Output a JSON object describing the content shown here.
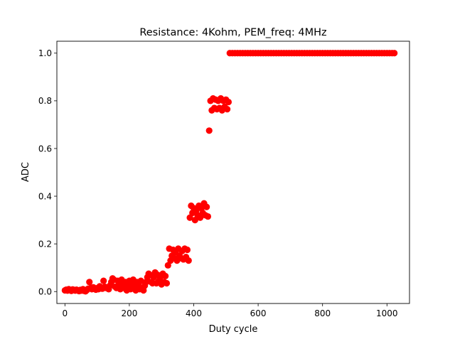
{
  "chart_data": {
    "type": "scatter",
    "title": "Resistance: 4Kohm, PEM_freq: 4MHz",
    "xlabel": "Duty cycle",
    "ylabel": "ADC",
    "xlim": [
      -25,
      1070
    ],
    "ylim": [
      -0.05,
      1.05
    ],
    "xticks": [
      0,
      200,
      400,
      600,
      800,
      1000
    ],
    "xtick_labels": [
      "0",
      "200",
      "400",
      "600",
      "800",
      "1000"
    ],
    "yticks": [
      0.0,
      0.2,
      0.4,
      0.6,
      0.8,
      1.0
    ],
    "ytick_labels": [
      "0.0",
      "0.2",
      "0.4",
      "0.6",
      "0.8",
      "1.0"
    ],
    "grid": false,
    "legend": "none",
    "marker_color": "#ff0000",
    "series": [
      {
        "values": [
          [
            0,
            0.005
          ],
          [
            4,
            0.008
          ],
          [
            8,
            0.004
          ],
          [
            12,
            0.01
          ],
          [
            16,
            0.006
          ],
          [
            20,
            0.003
          ],
          [
            24,
            0.009
          ],
          [
            28,
            0.007
          ],
          [
            32,
            0.004
          ],
          [
            36,
            0.008
          ],
          [
            40,
            0.005
          ],
          [
            44,
            0.002
          ],
          [
            48,
            0.007
          ],
          [
            52,
            0.004
          ],
          [
            56,
            0.01
          ],
          [
            60,
            0.003
          ],
          [
            64,
            0.001
          ],
          [
            68,
            0.006
          ],
          [
            72,
            0.012
          ],
          [
            76,
            0.04
          ],
          [
            80,
            0.015
          ],
          [
            84,
            0.01
          ],
          [
            88,
            0.018
          ],
          [
            92,
            0.012
          ],
          [
            96,
            0.008
          ],
          [
            100,
            0.014
          ],
          [
            104,
            0.01
          ],
          [
            108,
            0.022
          ],
          [
            112,
            0.016
          ],
          [
            116,
            0.012
          ],
          [
            120,
            0.045
          ],
          [
            124,
            0.02
          ],
          [
            128,
            0.015
          ],
          [
            132,
            0.018
          ],
          [
            136,
            0.01
          ],
          [
            140,
            0.025
          ],
          [
            144,
            0.04
          ],
          [
            148,
            0.055
          ],
          [
            152,
            0.05
          ],
          [
            156,
            0.02
          ],
          [
            160,
            0.015
          ],
          [
            164,
            0.045
          ],
          [
            168,
            0.03
          ],
          [
            172,
            0.01
          ],
          [
            176,
            0.05
          ],
          [
            180,
            0.025
          ],
          [
            184,
            0.015
          ],
          [
            188,
            0.04
          ],
          [
            192,
            0.005
          ],
          [
            196,
            0.03
          ],
          [
            200,
            0.045
          ],
          [
            204,
            0.01
          ],
          [
            208,
            0.035
          ],
          [
            212,
            0.05
          ],
          [
            216,
            0.02
          ],
          [
            220,
            0.005
          ],
          [
            224,
            0.04
          ],
          [
            228,
            0.03
          ],
          [
            232,
            0.01
          ],
          [
            236,
            0.045
          ],
          [
            240,
            0.015
          ],
          [
            244,
            0.005
          ],
          [
            248,
            0.025
          ],
          [
            252,
            0.04
          ],
          [
            256,
            0.06
          ],
          [
            260,
            0.075
          ],
          [
            264,
            0.07
          ],
          [
            268,
            0.04
          ],
          [
            272,
            0.035
          ],
          [
            276,
            0.06
          ],
          [
            280,
            0.08
          ],
          [
            284,
            0.035
          ],
          [
            288,
            0.07
          ],
          [
            292,
            0.045
          ],
          [
            296,
            0.06
          ],
          [
            300,
            0.03
          ],
          [
            304,
            0.075
          ],
          [
            308,
            0.04
          ],
          [
            312,
            0.065
          ],
          [
            316,
            0.035
          ],
          [
            320,
            0.11
          ],
          [
            324,
            0.18
          ],
          [
            328,
            0.13
          ],
          [
            332,
            0.15
          ],
          [
            336,
            0.175
          ],
          [
            340,
            0.14
          ],
          [
            344,
            0.165
          ],
          [
            348,
            0.13
          ],
          [
            352,
            0.18
          ],
          [
            356,
            0.15
          ],
          [
            360,
            0.14
          ],
          [
            364,
            0.17
          ],
          [
            368,
            0.135
          ],
          [
            372,
            0.18
          ],
          [
            376,
            0.145
          ],
          [
            380,
            0.175
          ],
          [
            384,
            0.13
          ],
          [
            388,
            0.31
          ],
          [
            392,
            0.36
          ],
          [
            396,
            0.33
          ],
          [
            400,
            0.35
          ],
          [
            404,
            0.3
          ],
          [
            408,
            0.34
          ],
          [
            412,
            0.32
          ],
          [
            416,
            0.36
          ],
          [
            420,
            0.31
          ],
          [
            424,
            0.35
          ],
          [
            428,
            0.33
          ],
          [
            432,
            0.37
          ],
          [
            436,
            0.32
          ],
          [
            440,
            0.355
          ],
          [
            444,
            0.315
          ],
          [
            448,
            0.675
          ],
          [
            452,
            0.8
          ],
          [
            456,
            0.76
          ],
          [
            460,
            0.81
          ],
          [
            464,
            0.77
          ],
          [
            468,
            0.805
          ],
          [
            472,
            0.765
          ],
          [
            476,
            0.8
          ],
          [
            480,
            0.77
          ],
          [
            484,
            0.81
          ],
          [
            488,
            0.76
          ],
          [
            492,
            0.8
          ],
          [
            496,
            0.775
          ],
          [
            500,
            0.805
          ],
          [
            504,
            0.765
          ],
          [
            508,
            0.795
          ],
          [
            512,
            1.0
          ],
          [
            520,
            1.0
          ],
          [
            528,
            1.0
          ],
          [
            536,
            1.0
          ],
          [
            544,
            1.0
          ],
          [
            552,
            1.0
          ],
          [
            560,
            1.0
          ],
          [
            568,
            1.0
          ],
          [
            576,
            1.0
          ],
          [
            584,
            1.0
          ],
          [
            592,
            1.0
          ],
          [
            600,
            1.0
          ],
          [
            608,
            1.0
          ],
          [
            616,
            1.0
          ],
          [
            624,
            1.0
          ],
          [
            632,
            1.0
          ],
          [
            640,
            1.0
          ],
          [
            648,
            1.0
          ],
          [
            656,
            1.0
          ],
          [
            664,
            1.0
          ],
          [
            672,
            1.0
          ],
          [
            680,
            1.0
          ],
          [
            688,
            1.0
          ],
          [
            696,
            1.0
          ],
          [
            704,
            1.0
          ],
          [
            712,
            1.0
          ],
          [
            720,
            1.0
          ],
          [
            728,
            1.0
          ],
          [
            736,
            1.0
          ],
          [
            744,
            1.0
          ],
          [
            752,
            1.0
          ],
          [
            760,
            1.0
          ],
          [
            768,
            1.0
          ],
          [
            776,
            1.0
          ],
          [
            784,
            1.0
          ],
          [
            792,
            1.0
          ],
          [
            800,
            1.0
          ],
          [
            808,
            1.0
          ],
          [
            816,
            1.0
          ],
          [
            824,
            1.0
          ],
          [
            832,
            1.0
          ],
          [
            840,
            1.0
          ],
          [
            848,
            1.0
          ],
          [
            856,
            1.0
          ],
          [
            864,
            1.0
          ],
          [
            872,
            1.0
          ],
          [
            880,
            1.0
          ],
          [
            888,
            1.0
          ],
          [
            896,
            1.0
          ],
          [
            904,
            1.0
          ],
          [
            912,
            1.0
          ],
          [
            920,
            1.0
          ],
          [
            928,
            1.0
          ],
          [
            936,
            1.0
          ],
          [
            944,
            1.0
          ],
          [
            952,
            1.0
          ],
          [
            960,
            1.0
          ],
          [
            968,
            1.0
          ],
          [
            976,
            1.0
          ],
          [
            984,
            1.0
          ],
          [
            992,
            1.0
          ],
          [
            1000,
            1.0
          ],
          [
            1008,
            1.0
          ],
          [
            1016,
            1.0
          ],
          [
            1023,
            1.0
          ]
        ]
      }
    ]
  }
}
